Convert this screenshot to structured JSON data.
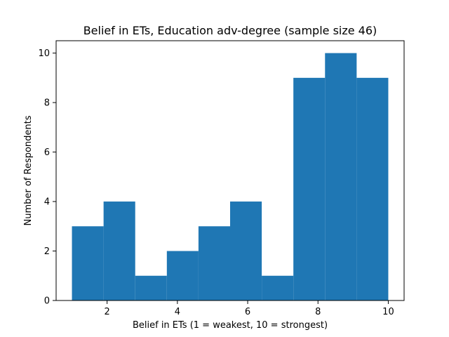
{
  "chart_data": {
    "type": "bar",
    "title": "Belief in ETs, Education adv-degree (sample size 46)",
    "xlabel": "Belief in ETs (1 = weakest, 10 = strongest)",
    "ylabel": "Number of Respondents",
    "xlim": [
      0.55,
      10.45
    ],
    "ylim": [
      0,
      10.5
    ],
    "xticks": [
      2,
      4,
      6,
      8,
      10
    ],
    "yticks": [
      0,
      2,
      4,
      6,
      8,
      10
    ],
    "bin_edges": [
      1.0,
      1.9,
      2.8,
      3.7,
      4.6,
      5.5,
      6.4,
      7.3,
      8.2,
      9.1,
      10.0
    ],
    "values": [
      3,
      4,
      1,
      2,
      3,
      4,
      1,
      9,
      10,
      9
    ],
    "color": "#1f77b4",
    "grid": false,
    "legend": "none"
  }
}
